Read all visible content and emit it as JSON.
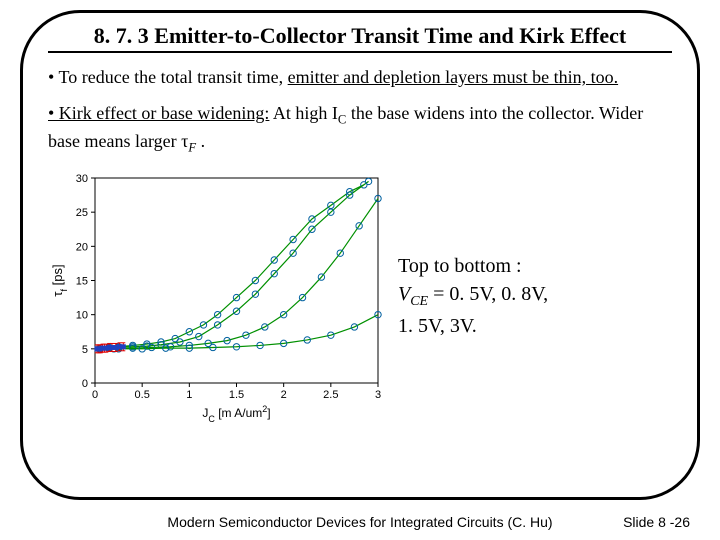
{
  "title": "8. 7. 3  Emitter-to-Collector Transit Time and Kirk Effect",
  "bullets": {
    "b1_prefix": "• To reduce the total transit time, ",
    "b1_ul": "emitter and depletion layers must be thin, too.",
    "b2_prefix_ul": "• Kirk effect or base widening:",
    "b2_mid": " At high I",
    "b2_sub1": "C",
    "b2_mid2": " the base widens into the collector. Wider base means larger ",
    "b2_tau": "τ",
    "b2_sub2": "F",
    "b2_tail": " ."
  },
  "legend": {
    "line1": "Top to bottom :",
    "line2_v": "V",
    "line2_sub": "CE",
    "line2_eq": " = 0. 5V, 0. 8V,",
    "line3": "1. 5V, 3V."
  },
  "footer": {
    "ref": "Modern Semiconductor Devices for Integrated Circuits (C. Hu)",
    "slide": "Slide 8 -26"
  },
  "chart": {
    "type": "scatter-line",
    "xlabel_j": "J",
    "xlabel_sub": "C",
    "xlabel_unit": " [m A/um",
    "xlabel_sup": "2",
    "xlabel_end": "]",
    "ylabel_tau": "τ",
    "ylabel_sub": "f",
    "ylabel_unit": " [ps]",
    "xlim": [
      0,
      3
    ],
    "ylim": [
      0,
      30
    ],
    "xticks": [
      0,
      0.5,
      1,
      1.5,
      2,
      2.5,
      3
    ],
    "yticks": [
      0,
      5,
      10,
      15,
      20,
      25,
      30
    ],
    "curve_color": "#009000",
    "marker_color": "#0060a0",
    "marker_bars": "#e00000",
    "background": "#ffffff",
    "series_a": {
      "x": [
        0.05,
        0.15,
        0.25,
        0.4,
        0.55,
        0.7,
        0.85,
        1.0,
        1.15,
        1.3,
        1.5,
        1.7,
        1.9,
        2.1,
        2.3,
        2.5,
        2.7,
        2.85
      ],
      "y": [
        5,
        5.2,
        5.3,
        5.5,
        5.7,
        6.0,
        6.5,
        7.5,
        8.5,
        10,
        12.5,
        15,
        18,
        21,
        24,
        26,
        28,
        29
      ]
    },
    "series_b": {
      "x": [
        0.05,
        0.15,
        0.25,
        0.4,
        0.55,
        0.7,
        0.9,
        1.1,
        1.3,
        1.5,
        1.7,
        1.9,
        2.1,
        2.3,
        2.5,
        2.7,
        2.9
      ],
      "y": [
        5,
        5.1,
        5.2,
        5.3,
        5.4,
        5.6,
        6.0,
        6.8,
        8.5,
        10.5,
        13,
        16,
        19,
        22.5,
        25,
        27.5,
        29.5
      ]
    },
    "series_c": {
      "x": [
        0.05,
        0.2,
        0.4,
        0.6,
        0.8,
        1.0,
        1.2,
        1.4,
        1.6,
        1.8,
        2.0,
        2.2,
        2.4,
        2.6,
        2.8,
        3.0
      ],
      "y": [
        5,
        5.0,
        5.1,
        5.2,
        5.3,
        5.5,
        5.8,
        6.2,
        7.0,
        8.2,
        10,
        12.5,
        15.5,
        19,
        23,
        27
      ]
    },
    "series_d": {
      "x": [
        0.05,
        0.25,
        0.5,
        0.75,
        1.0,
        1.25,
        1.5,
        1.75,
        2.0,
        2.25,
        2.5,
        2.75,
        3.0
      ],
      "y": [
        5,
        5.0,
        5.0,
        5.1,
        5.1,
        5.2,
        5.3,
        5.5,
        5.8,
        6.3,
        7.0,
        8.2,
        10
      ]
    },
    "low_jc_markers": {
      "x": [
        0.02,
        0.04,
        0.06,
        0.08,
        0.1,
        0.12,
        0.15,
        0.18,
        0.22,
        0.26,
        0.3
      ],
      "y": [
        5,
        5,
        5,
        5.1,
        5.1,
        5.1,
        5.2,
        5.2,
        5.2,
        5.3,
        5.3
      ]
    }
  }
}
